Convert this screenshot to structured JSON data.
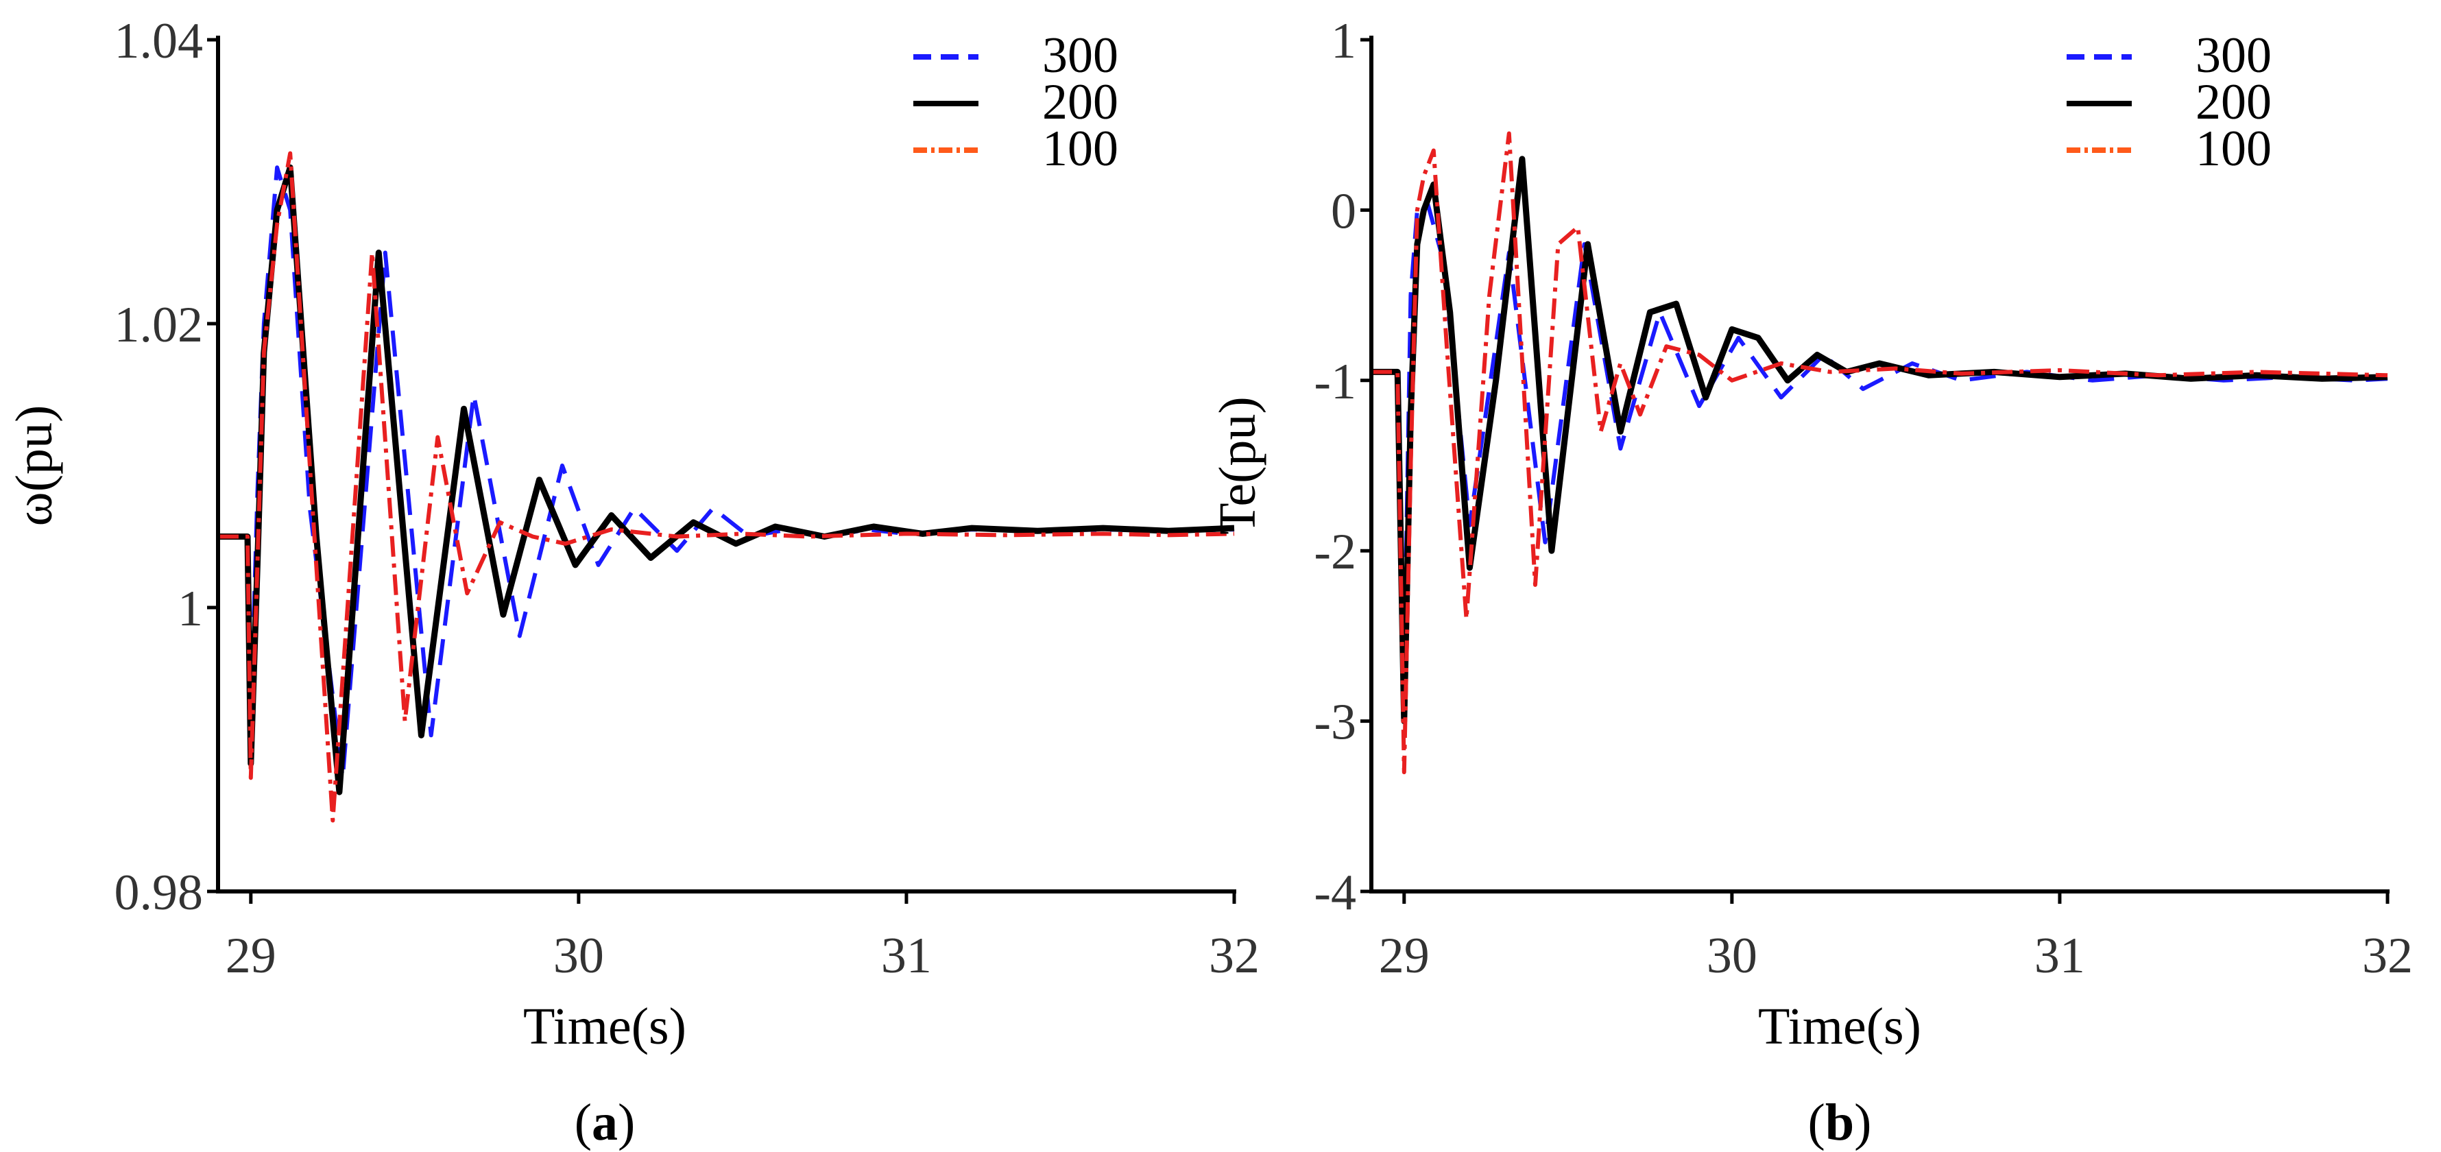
{
  "chart_data": [
    {
      "type": "line",
      "panel_label": "a",
      "xlabel": "Time(s)",
      "ylabel": "ω(pu)",
      "xlim": [
        28.9,
        32
      ],
      "ylim": [
        0.98,
        1.04
      ],
      "xticks": [
        29,
        30,
        31,
        32
      ],
      "xtick_labels": [
        "29",
        "30",
        "31",
        "32"
      ],
      "yticks": [
        0.98,
        1,
        1.02,
        1.04
      ],
      "ytick_labels": [
        "0.98",
        "1",
        "1.02",
        "1.04"
      ],
      "legend": {
        "position": "top-right",
        "entries": [
          "300",
          "200",
          "100"
        ]
      },
      "series": [
        {
          "name": "300",
          "style": "dashed",
          "x": [
            28.9,
            28.99,
            29.0,
            29.02,
            29.04,
            29.08,
            29.12,
            29.18,
            29.28,
            29.41,
            29.55,
            29.68,
            29.82,
            29.95,
            30.06,
            30.17,
            30.3,
            30.41,
            30.52,
            30.64,
            30.76,
            30.88,
            31.0,
            31.2,
            31.4,
            31.6,
            31.8,
            32.0
          ],
          "y": [
            1.005,
            1.005,
            0.992,
            1.008,
            1.02,
            1.031,
            1.028,
            1.007,
            0.988,
            1.025,
            0.991,
            1.015,
            0.998,
            1.01,
            1.003,
            1.007,
            1.004,
            1.007,
            1.005,
            1.0055,
            1.005,
            1.0055,
            1.0052,
            1.0055,
            1.0054,
            1.0055,
            1.0054,
            1.0055
          ]
        },
        {
          "name": "200",
          "style": "solid",
          "x": [
            28.9,
            28.99,
            29.0,
            29.02,
            29.04,
            29.08,
            29.12,
            29.2,
            29.27,
            29.39,
            29.52,
            29.65,
            29.77,
            29.88,
            29.99,
            30.1,
            30.22,
            30.35,
            30.48,
            30.6,
            30.75,
            30.9,
            31.05,
            31.2,
            31.4,
            31.6,
            31.8,
            32.0
          ],
          "y": [
            1.005,
            1.005,
            0.989,
            1.003,
            1.018,
            1.028,
            1.031,
            1.005,
            0.987,
            1.025,
            0.991,
            1.014,
            0.9995,
            1.009,
            1.003,
            1.0065,
            1.0035,
            1.006,
            1.0045,
            1.0057,
            1.005,
            1.0057,
            1.0052,
            1.0056,
            1.0054,
            1.0056,
            1.0054,
            1.0056
          ]
        },
        {
          "name": "100",
          "style": "dash-dot",
          "x": [
            28.9,
            28.99,
            29.0,
            29.02,
            29.04,
            29.08,
            29.12,
            29.18,
            29.25,
            29.37,
            29.47,
            29.57,
            29.66,
            29.76,
            29.86,
            29.96,
            30.1,
            30.3,
            30.5,
            30.7,
            31.0,
            31.3,
            31.6,
            31.8,
            32.0
          ],
          "y": [
            1.005,
            1.005,
            0.988,
            1.003,
            1.018,
            1.027,
            1.032,
            1.01,
            0.985,
            1.025,
            0.992,
            1.012,
            1.001,
            1.006,
            1.005,
            1.0045,
            1.0055,
            1.005,
            1.0052,
            1.005,
            1.0052,
            1.0051,
            1.0052,
            1.0051,
            1.0052
          ]
        }
      ]
    },
    {
      "type": "line",
      "panel_label": "b",
      "xlabel": "Time(s)",
      "ylabel": "Te(pu)",
      "xlim": [
        28.9,
        32
      ],
      "ylim": [
        -4,
        1
      ],
      "xticks": [
        29,
        30,
        31,
        32
      ],
      "xtick_labels": [
        "29",
        "30",
        "31",
        "32"
      ],
      "yticks": [
        -4,
        -3,
        -2,
        -1,
        0,
        1
      ],
      "ytick_labels": [
        "-4",
        "-3",
        "-2",
        "-1",
        "0",
        "1"
      ],
      "legend": {
        "position": "top-right",
        "entries": [
          "300",
          "200",
          "100"
        ]
      },
      "series": [
        {
          "name": "300",
          "style": "dashed",
          "x": [
            28.9,
            28.98,
            29.0,
            29.02,
            29.04,
            29.07,
            29.12,
            29.2,
            29.32,
            29.43,
            29.55,
            29.66,
            29.78,
            29.9,
            30.02,
            30.15,
            30.28,
            30.4,
            30.55,
            30.7,
            30.9,
            31.1,
            31.3,
            31.5,
            31.7,
            31.9,
            32.0
          ],
          "y": [
            -0.95,
            -0.95,
            -2.7,
            -0.5,
            0.0,
            0.05,
            -0.3,
            -1.85,
            -0.25,
            -1.95,
            -0.2,
            -1.4,
            -0.6,
            -1.15,
            -0.75,
            -1.1,
            -0.85,
            -1.05,
            -0.9,
            -1.0,
            -0.95,
            -1.0,
            -0.97,
            -1.0,
            -0.98,
            -1.0,
            -0.99
          ]
        },
        {
          "name": "200",
          "style": "solid",
          "x": [
            28.9,
            28.98,
            29.0,
            29.02,
            29.04,
            29.06,
            29.09,
            29.14,
            29.2,
            29.28,
            29.36,
            29.45,
            29.56,
            29.66,
            29.75,
            29.83,
            29.92,
            30.0,
            30.08,
            30.17,
            30.26,
            30.35,
            30.45,
            30.6,
            30.8,
            31.0,
            31.2,
            31.4,
            31.6,
            31.8,
            32.0
          ],
          "y": [
            -0.95,
            -0.95,
            -3.0,
            -1.2,
            -0.2,
            0.0,
            0.15,
            -0.6,
            -2.1,
            -1.0,
            0.3,
            -2.0,
            -0.2,
            -1.3,
            -0.6,
            -0.55,
            -1.1,
            -0.7,
            -0.75,
            -1.0,
            -0.85,
            -0.95,
            -0.9,
            -0.97,
            -0.95,
            -0.98,
            -0.96,
            -0.99,
            -0.97,
            -0.99,
            -0.98
          ]
        },
        {
          "name": "100",
          "style": "dash-dot",
          "x": [
            28.9,
            28.98,
            29.0,
            29.02,
            29.04,
            29.06,
            29.09,
            29.13,
            29.19,
            29.26,
            29.32,
            29.4,
            29.47,
            29.53,
            29.6,
            29.66,
            29.72,
            29.8,
            29.9,
            30.0,
            30.15,
            30.3,
            30.5,
            30.7,
            31.0,
            31.3,
            31.6,
            32.0
          ],
          "y": [
            -0.95,
            -0.95,
            -3.3,
            -1.5,
            0.0,
            0.2,
            0.35,
            -0.8,
            -2.4,
            -0.5,
            0.45,
            -2.2,
            -0.2,
            -0.1,
            -1.3,
            -0.9,
            -1.2,
            -0.8,
            -0.85,
            -1.0,
            -0.9,
            -0.95,
            -0.93,
            -0.96,
            -0.94,
            -0.97,
            -0.95,
            -0.97
          ]
        }
      ]
    }
  ]
}
